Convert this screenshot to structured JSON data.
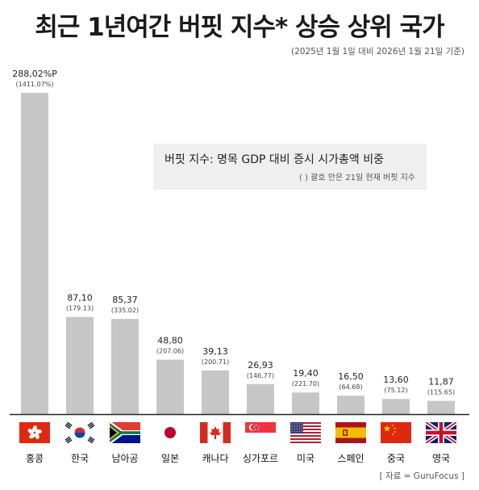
{
  "title": "최근 1년여간 버핏 지수* 상승 상위 국가",
  "subtitle": "(2025년 1월 1일 대비 2026년 1월 21일 기준)",
  "legend": {
    "line1": "버핏 지수: 명목 GDP 대비 증시 시가총액 비중",
    "line2": "(   ) 괄호 안은 21일 현재 버핏 지수"
  },
  "source": "[ 자료 = GuruFocus ]",
  "chart_data": {
    "type": "bar",
    "title": "최근 1년여간 버핏 지수* 상승 상위 국가",
    "categories": [
      "홍콩",
      "한국",
      "남아공",
      "일본",
      "캐나다",
      "싱가포르",
      "미국",
      "스페인",
      "중국",
      "영국"
    ],
    "series": [
      {
        "values": [
          288.02,
          87.1,
          85.37,
          48.8,
          39.13,
          26.93,
          19.4,
          16.5,
          13.6,
          11.87
        ]
      }
    ],
    "value_labels": [
      "288,02%P",
      "87,10",
      "85,37",
      "48,80",
      "39,13",
      "26,93",
      "19,40",
      "16,50",
      "13,60",
      "11,87"
    ],
    "current_index": [
      1411.07,
      179.13,
      335.02,
      207.06,
      200.71,
      146.77,
      221.7,
      64.68,
      75.12,
      115.65
    ],
    "current_index_labels": [
      "(1411.07%)",
      "(179.13)",
      "(335.02)",
      "(207.06)",
      "(200.71)",
      "(146.77)",
      "(221.70)",
      "(64.68)",
      "(75.12)",
      "(115.65)"
    ],
    "flags": [
      "hongkong-flag-icon",
      "korea-flag-icon",
      "south-africa-flag-icon",
      "japan-flag-icon",
      "canada-flag-icon",
      "singapore-flag-icon",
      "usa-flag-icon",
      "spain-flag-icon",
      "china-flag-icon",
      "uk-flag-icon"
    ],
    "xlabel": "",
    "ylabel": "",
    "ylim": [
      0,
      288.02
    ],
    "grid": false,
    "bar_color": "#c6c6c6"
  }
}
